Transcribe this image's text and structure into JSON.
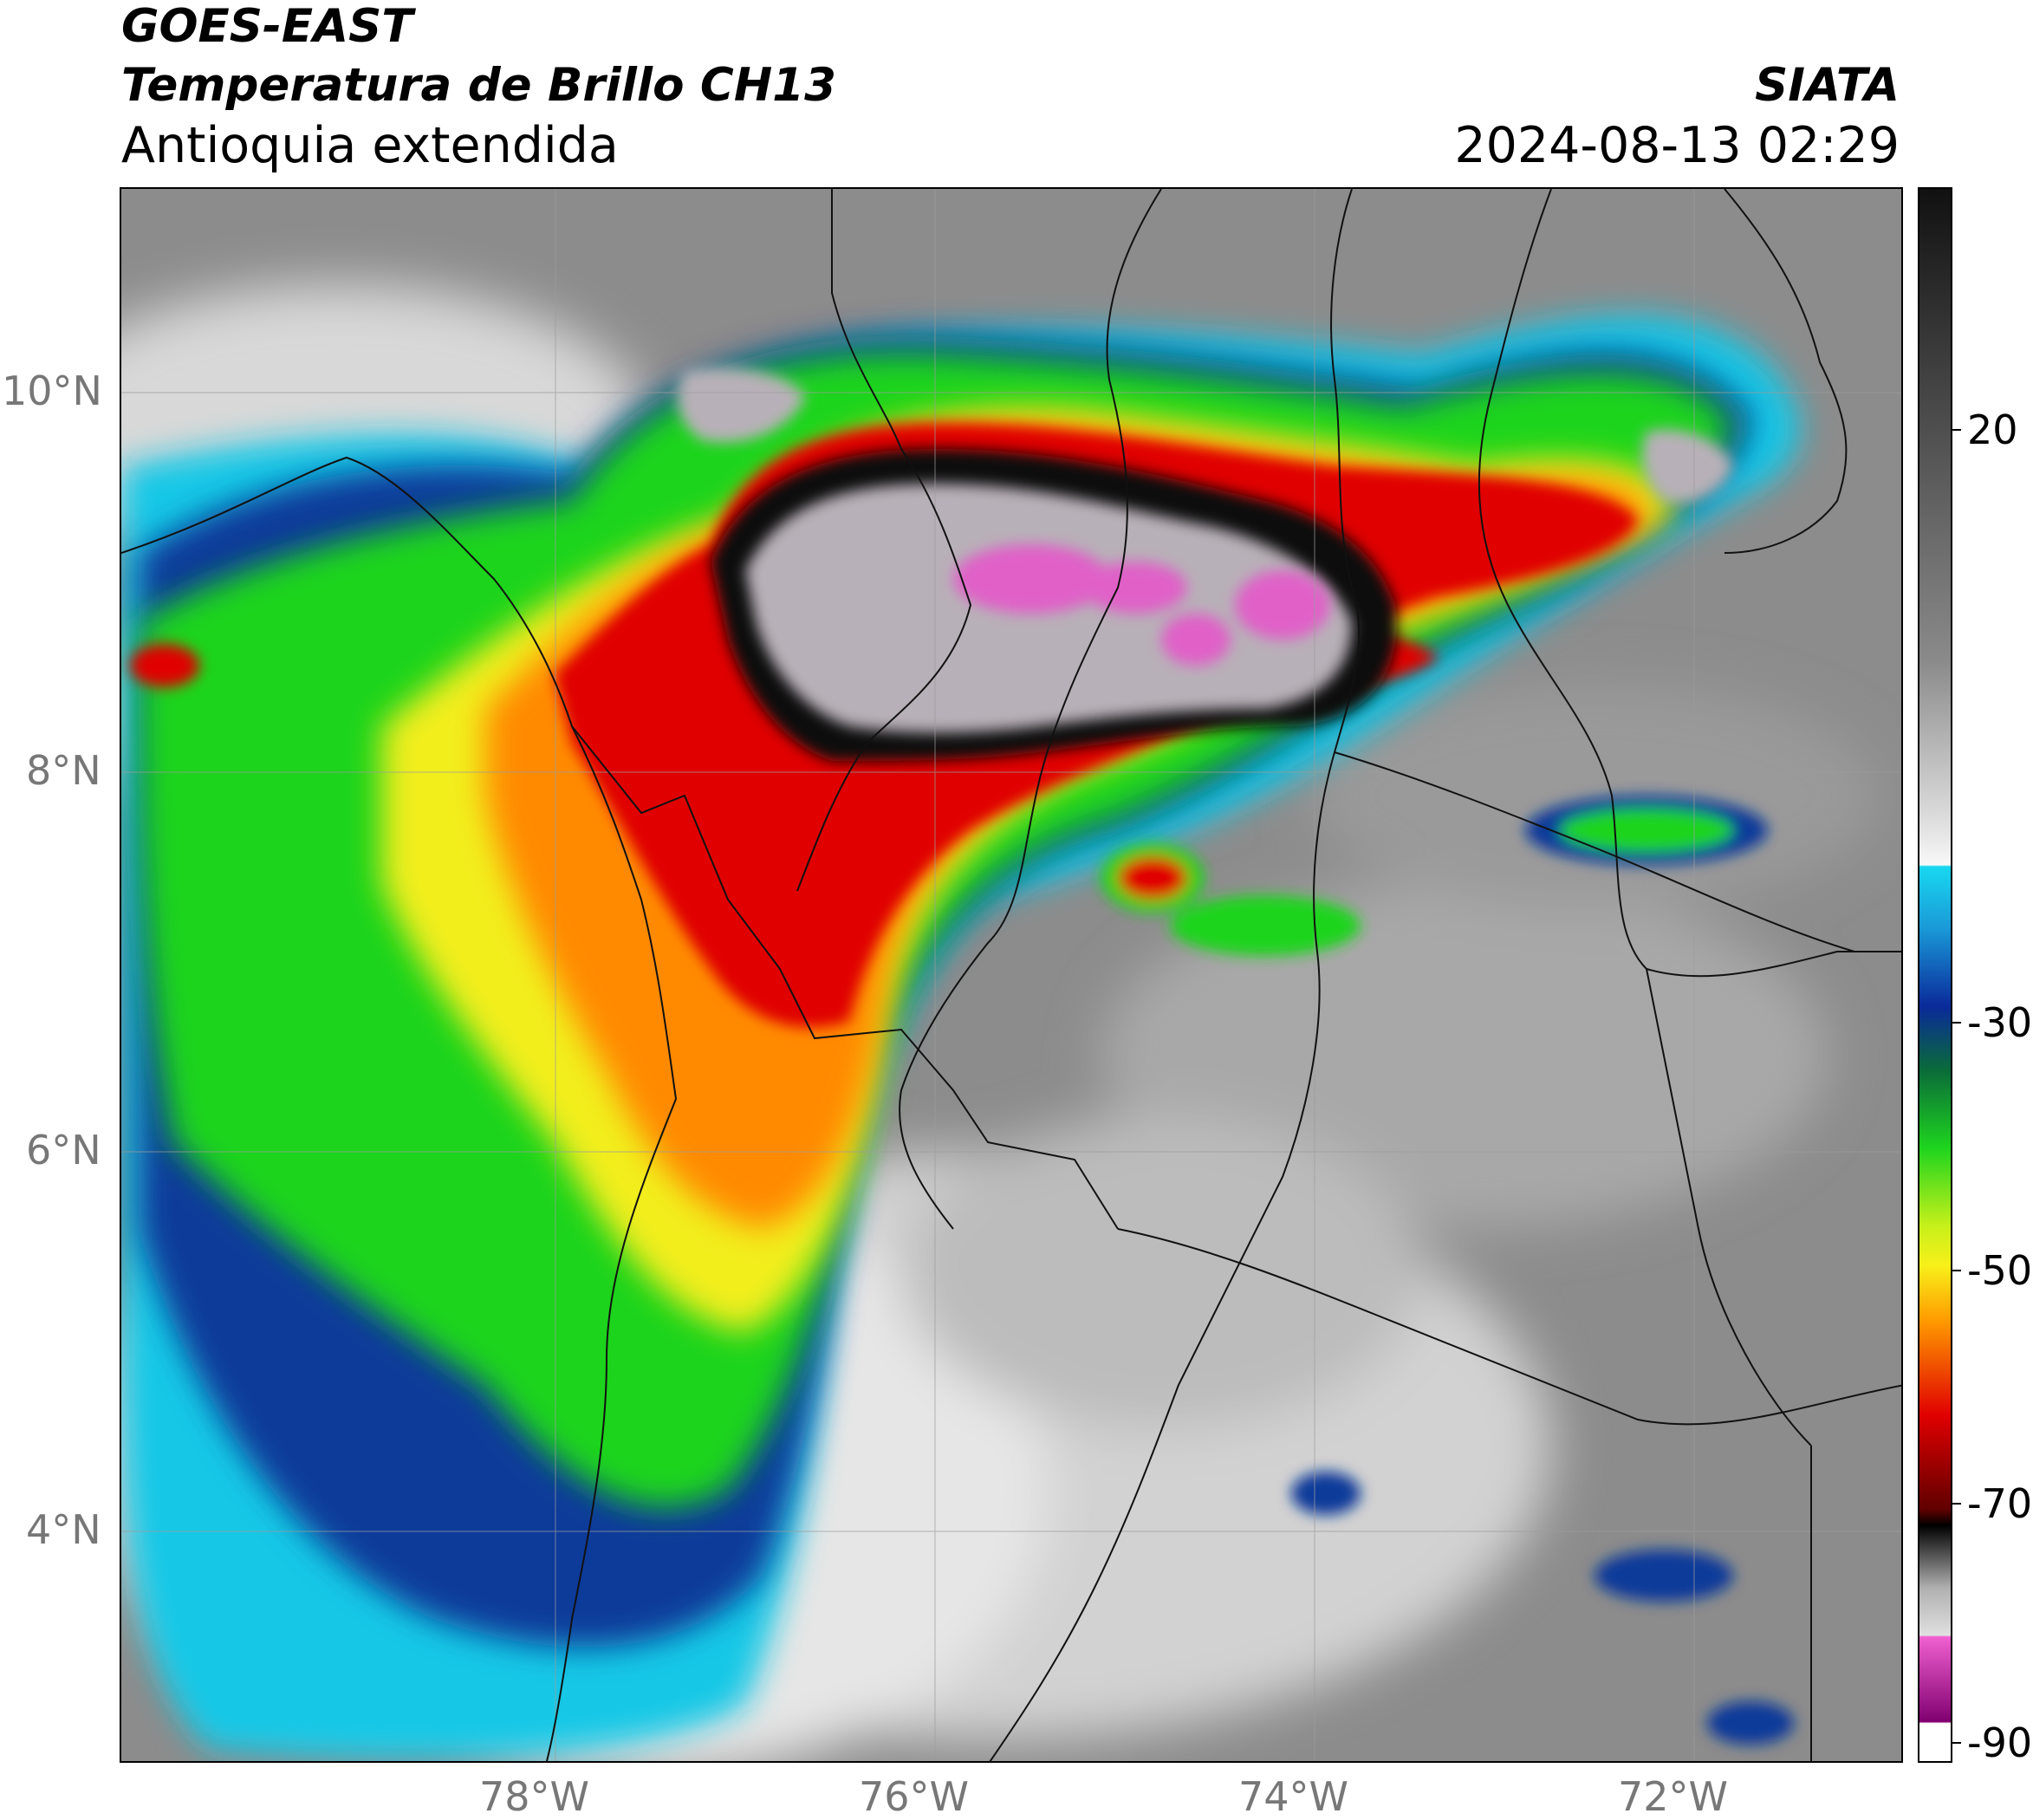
{
  "header": {
    "line1": "GOES-EAST",
    "line2": "Temperatura de Brillo CH13",
    "line3": "Antioquia extendida",
    "org": "SIATA",
    "datetime": "2024-08-13 02:29"
  },
  "axes": {
    "lat_labels": [
      "10°N",
      "8°N",
      "6°N",
      "4°N"
    ],
    "lon_labels": [
      "78°W",
      "76°W",
      "74°W",
      "72°W"
    ],
    "lon_range": [
      -80.1,
      -70.7
    ],
    "lat_range": [
      2.8,
      11.1
    ],
    "gridlines": true
  },
  "colorbar": {
    "ticks": [
      "20",
      "-30",
      "-50",
      "-70",
      "-90"
    ],
    "tick_values": [
      20,
      -30,
      -50,
      -70,
      -90
    ],
    "range": [
      -93,
      33
    ],
    "units_note": ""
  },
  "colors": {
    "frame": "#000000",
    "tick_text": "#777777",
    "warm_gray": "#8f8f8f",
    "cold_cloud_white": "#f2f2f2",
    "cyan": "#18c8e6",
    "blue": "#0a3a9a",
    "green": "#1ed41e",
    "yellow": "#f2ee1a",
    "orange": "#ff8a00",
    "red": "#e00000",
    "black": "#101010",
    "pink": "#e060c8"
  }
}
